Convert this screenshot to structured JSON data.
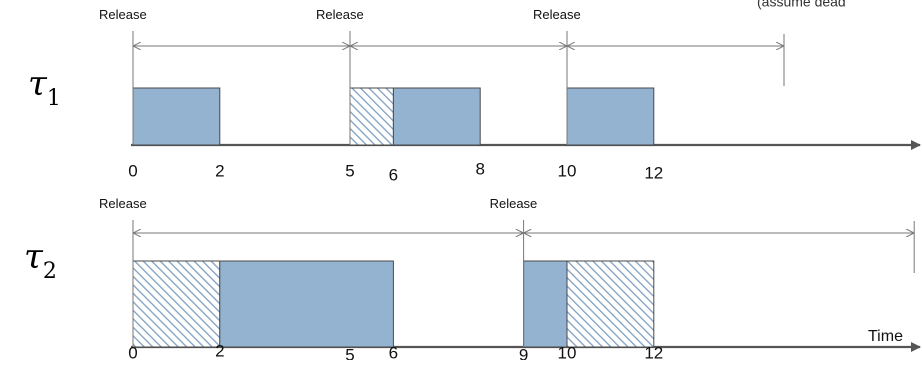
{
  "note": "(assume dead",
  "time_label": "Time",
  "release_label": "Release",
  "colors": {
    "solid": "#94b3d1",
    "hatch": "#7f9fc0",
    "edge": "#4a4a4a",
    "arrow": "#777777",
    "axis": "#555555"
  },
  "tasks": [
    {
      "symbol": "τ",
      "subscript": "1",
      "releases": [
        0,
        5,
        10
      ],
      "period_end": 15,
      "ticks": [
        "0",
        "2",
        "5",
        "6",
        "8",
        "10",
        "12"
      ],
      "tick_values": [
        0,
        2,
        5,
        6,
        8,
        10,
        12
      ],
      "blocks": [
        {
          "start": 0,
          "end": 2,
          "style": "solid"
        },
        {
          "start": 5,
          "end": 6,
          "style": "hatched"
        },
        {
          "start": 6,
          "end": 8,
          "style": "solid"
        },
        {
          "start": 10,
          "end": 12,
          "style": "solid"
        }
      ]
    },
    {
      "symbol": "τ",
      "subscript": "2",
      "releases": [
        0,
        9
      ],
      "period_end": 18,
      "ticks": [
        "0",
        "2",
        "5",
        "6",
        "9",
        "10",
        "12"
      ],
      "tick_values": [
        0,
        2,
        5,
        6,
        9,
        10,
        12
      ],
      "blocks": [
        {
          "start": 0,
          "end": 2,
          "style": "hatched"
        },
        {
          "start": 2,
          "end": 6,
          "style": "solid"
        },
        {
          "start": 9,
          "end": 10,
          "style": "solid"
        },
        {
          "start": 10,
          "end": 12,
          "style": "hatched"
        }
      ]
    }
  ]
}
